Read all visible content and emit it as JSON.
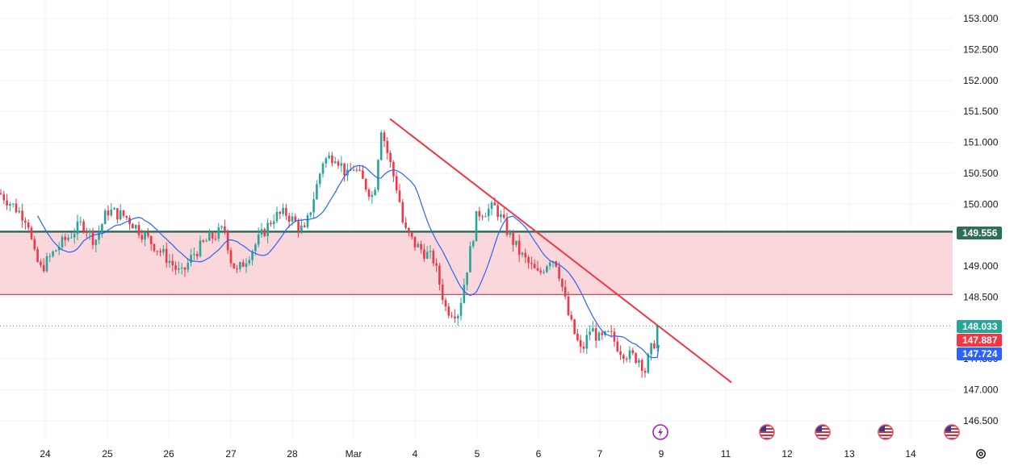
{
  "colors": {
    "background": "#ffffff",
    "grid": "#f0f3fa",
    "bull": "#26a69a",
    "bear": "#f23645",
    "ma": "#2962ff",
    "trendline": "#f23645",
    "zone_fill": "#f8c9cd",
    "zone_top": "#2e6f5b",
    "zone_bottom": "#e8404f",
    "current_price_line": "#26a69a",
    "axis_text": "#131722",
    "lightning": "#9c27b0"
  },
  "price_axis": {
    "ticks": [
      "153.000",
      "152.500",
      "152.000",
      "151.500",
      "151.000",
      "150.500",
      "150.000",
      "149.500",
      "149.000",
      "148.500",
      "148.000",
      "147.500",
      "147.000",
      "146.500"
    ],
    "labels": [
      {
        "text": "149.556",
        "value": 149.556,
        "color": "#2e6f5b"
      },
      {
        "text": "148.033",
        "value": 148.033,
        "color": "#26a69a"
      },
      {
        "text": "147.887",
        "value": 147.887,
        "color": "#f23645"
      },
      {
        "text": "147.724",
        "value": 147.724,
        "color": "#2962ff"
      }
    ]
  },
  "time_axis": {
    "labels": [
      "24",
      "25",
      "26",
      "27",
      "28",
      "Mar",
      "4",
      "5",
      "6",
      "7",
      "9",
      "11",
      "12",
      "13",
      "14"
    ]
  },
  "event_icons": [
    {
      "kind": "lightning-icon",
      "at": "9"
    },
    {
      "kind": "us-flag-icon",
      "at": "12"
    },
    {
      "kind": "us-flag-icon",
      "at": "13"
    },
    {
      "kind": "us-flag-icon",
      "at": "14"
    },
    {
      "kind": "us-flag-icon",
      "at": "14+"
    }
  ],
  "chart_data": {
    "type": "candlestick",
    "symbol_timeframe": "intraday",
    "ylim": [
      146.35,
      153.2
    ],
    "y_axis_side": "right",
    "grid": true,
    "zone": {
      "top": 149.556,
      "bottom": 148.54
    },
    "trendline": {
      "from": {
        "date": "Mar 3",
        "price": 151.38
      },
      "to": {
        "date": "Mar 11",
        "price": 147.12
      }
    },
    "moving_average": {
      "last": 147.724
    },
    "last_price": 148.033,
    "path_points": [
      {
        "x": "Feb 21",
        "y": 150.45
      },
      {
        "x": "Feb 21.5",
        "y": 150.6
      },
      {
        "x": "Feb 22",
        "y": 150.45
      },
      {
        "x": "Feb 23.4",
        "y": 149.75
      },
      {
        "x": "Feb 23.6",
        "y": 149.2
      },
      {
        "x": "Feb 23.85",
        "y": 148.95
      },
      {
        "x": "Feb 24.2",
        "y": 149.3
      },
      {
        "x": "Feb 24.6",
        "y": 149.7
      },
      {
        "x": "Feb 24.8",
        "y": 149.4
      },
      {
        "x": "Feb 25",
        "y": 149.9
      },
      {
        "x": "Feb 25.3",
        "y": 149.8
      },
      {
        "x": "Feb 25.6",
        "y": 149.5
      },
      {
        "x": "Feb 26",
        "y": 149.1
      },
      {
        "x": "Feb 26.2",
        "y": 148.85
      },
      {
        "x": "Feb 26.4",
        "y": 149.2
      },
      {
        "x": "Feb 26.6",
        "y": 149.4
      },
      {
        "x": "Feb 26.9",
        "y": 149.6
      },
      {
        "x": "Feb 27",
        "y": 149.1
      },
      {
        "x": "Feb 27.1",
        "y": 148.9
      },
      {
        "x": "Feb 27.3",
        "y": 149.2
      },
      {
        "x": "Feb 27.5",
        "y": 149.5
      },
      {
        "x": "Feb 27.7",
        "y": 149.8
      },
      {
        "x": "Feb 27.9",
        "y": 149.85
      },
      {
        "x": "Feb 28",
        "y": 149.75
      },
      {
        "x": "Feb 28.2",
        "y": 149.55
      },
      {
        "x": "Feb 28.4",
        "y": 150.3
      },
      {
        "x": "Feb 28.5",
        "y": 150.7
      },
      {
        "x": "Feb 28.7",
        "y": 150.8
      },
      {
        "x": "Feb 28.9",
        "y": 150.45
      },
      {
        "x": "Mar 1",
        "y": 150.6
      },
      {
        "x": "Mar 1.2",
        "y": 150.35
      },
      {
        "x": "Mar 1.4",
        "y": 150.1
      },
      {
        "x": "Mar 1.55",
        "y": 151.25
      },
      {
        "x": "Mar 1.7",
        "y": 150.75
      },
      {
        "x": "Mar 1.9",
        "y": 150.15
      },
      {
        "x": "Mar 2",
        "y": 149.6
      },
      {
        "x": "Mar 4",
        "y": 149.35
      },
      {
        "x": "Mar 4.3",
        "y": 149.1
      },
      {
        "x": "Mar 4.5",
        "y": 148.3
      },
      {
        "x": "Mar 4.7",
        "y": 148.25
      },
      {
        "x": "Mar 4.9",
        "y": 149.3
      },
      {
        "x": "Mar 5",
        "y": 149.85
      },
      {
        "x": "Mar 5.3",
        "y": 149.95
      },
      {
        "x": "Mar 5.5",
        "y": 149.55
      },
      {
        "x": "Mar 5.7",
        "y": 149.2
      },
      {
        "x": "Mar 6",
        "y": 148.85
      },
      {
        "x": "Mar 6.2",
        "y": 149.15
      },
      {
        "x": "Mar 6.3",
        "y": 149.05
      },
      {
        "x": "Mar 6.5",
        "y": 148.15
      },
      {
        "x": "Mar 6.7",
        "y": 147.6
      },
      {
        "x": "Mar 6.85",
        "y": 148.0
      },
      {
        "x": "Mar 7",
        "y": 147.8
      },
      {
        "x": "Mar 7.2",
        "y": 147.9
      },
      {
        "x": "Mar 7.4",
        "y": 147.65
      },
      {
        "x": "Mar 7.6",
        "y": 147.55
      },
      {
        "x": "Mar 7.8",
        "y": 147.5
      },
      {
        "x": "Mar 7.9",
        "y": 147.3
      },
      {
        "x": "Mar 8",
        "y": 147.6
      },
      {
        "x": "Mar 9",
        "y": 148.03
      }
    ]
  }
}
